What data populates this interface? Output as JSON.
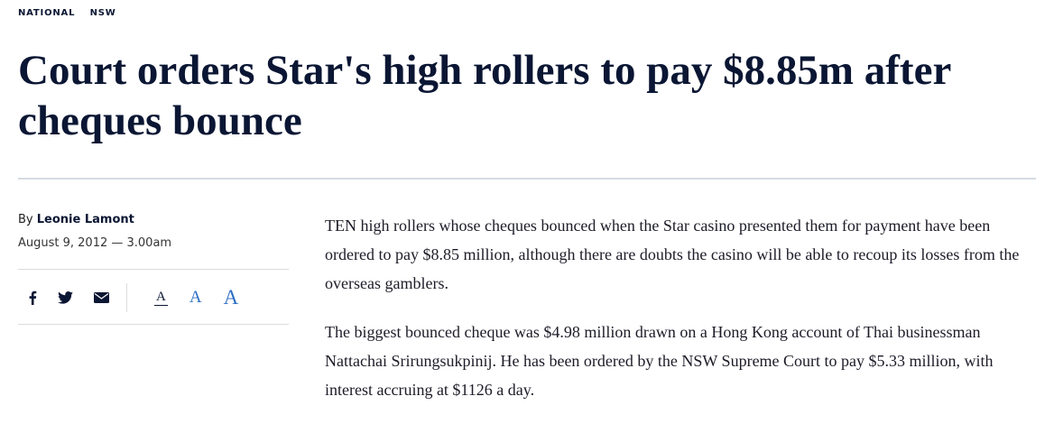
{
  "tags": [
    "NATIONAL",
    "NSW"
  ],
  "headline": "Court orders Star's high rollers to pay $8.85m after cheques bounce",
  "byline": {
    "prefix": "By ",
    "author": "Leonie Lamont",
    "date": "August 9, 2012 — 3.00am"
  },
  "share": {
    "icons": [
      "facebook-icon",
      "twitter-icon",
      "email-icon"
    ],
    "font_sizes": [
      "A",
      "A",
      "A"
    ]
  },
  "colors": {
    "headline": "#0a1633",
    "accent": "#2e6fc4"
  },
  "paragraphs": [
    "TEN high rollers whose cheques bounced when the Star casino presented them for payment have been ordered to pay $8.85 million, although there are doubts the casino will be able to recoup its losses from the overseas gamblers.",
    "The biggest bounced cheque was $4.98 million drawn on a Hong Kong account of Thai businessman Nattachai Srirungsukpinij. He has been ordered by the NSW Supreme Court to pay $5.33 million, with interest accruing at $1126 a day."
  ]
}
